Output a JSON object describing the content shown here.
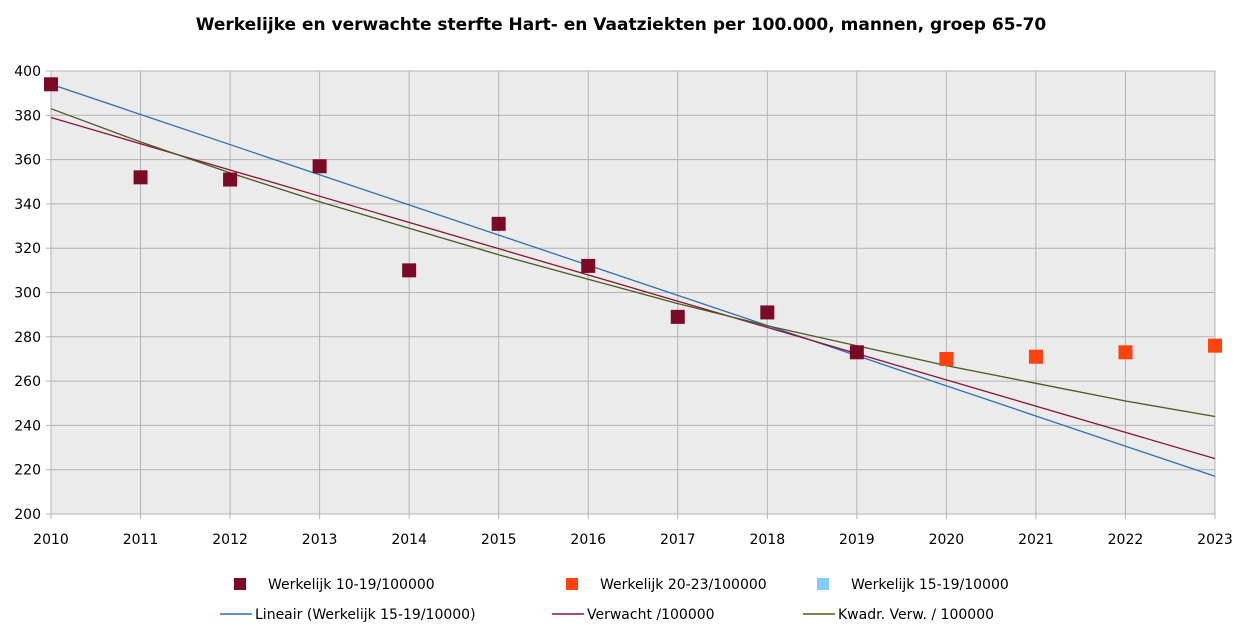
{
  "chart_data": {
    "type": "scatter",
    "title": "Werkelijke en verwachte sterfte Hart- en Vaatziekten per 100.000, mannen, groep 65-70",
    "xlabel": "",
    "ylabel": "",
    "xlim": [
      2010,
      2023
    ],
    "ylim": [
      200,
      400
    ],
    "x_ticks": [
      "2010",
      "2011",
      "2012",
      "2013",
      "2014",
      "2015",
      "2016",
      "2017",
      "2018",
      "2019",
      "2020",
      "2021",
      "2022",
      "2023"
    ],
    "y_ticks": [
      "200",
      "220",
      "240",
      "260",
      "280",
      "300",
      "320",
      "340",
      "360",
      "380",
      "400"
    ],
    "grid": true,
    "plot_background": "#ebebeb",
    "legend_position": "bottom",
    "series": [
      {
        "name": "Werkelijk 10-19/100000",
        "kind": "marker",
        "color": "#7b0a27",
        "x": [
          2010,
          2011,
          2012,
          2013,
          2014,
          2015,
          2016,
          2017,
          2018,
          2019
        ],
        "y": [
          394,
          352,
          351,
          357,
          310,
          331,
          312,
          289,
          291,
          273
        ]
      },
      {
        "name": "Werkelijk 20-23/100000",
        "kind": "marker",
        "color": "#ff420e",
        "x": [
          2020,
          2021,
          2022,
          2023
        ],
        "y": [
          270,
          271,
          273,
          276
        ]
      },
      {
        "name": "Werkelijk 15-19/10000",
        "kind": "marker",
        "color": "#83caff",
        "x": [],
        "y": []
      },
      {
        "name": "Lineair (Werkelijk 15-19/10000)",
        "kind": "line",
        "color": "#2e6fb5",
        "x": [
          2010,
          2023
        ],
        "y": [
          394,
          217
        ]
      },
      {
        "name": "Verwacht /100000",
        "kind": "line",
        "color": "#8a1538",
        "x": [
          2010,
          2023
        ],
        "y": [
          379,
          225
        ]
      },
      {
        "name": "Kwadr. Verw. / 100000",
        "kind": "line",
        "color": "#4d5a1e",
        "x": [
          2010,
          2011,
          2012,
          2013,
          2014,
          2015,
          2016,
          2017,
          2018,
          2019,
          2020,
          2021,
          2022,
          2023
        ],
        "y": [
          383,
          368,
          354,
          341,
          329,
          317,
          306,
          295,
          285,
          276,
          267,
          259,
          251,
          244
        ]
      }
    ]
  }
}
